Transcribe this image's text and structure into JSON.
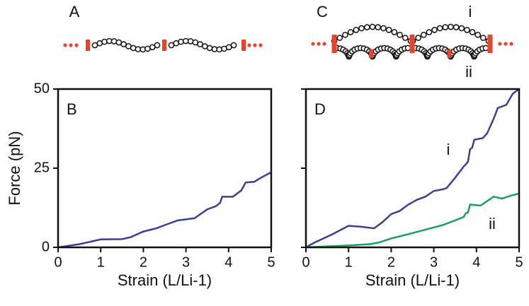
{
  "diagrams": [
    {
      "label": "A"
    },
    {
      "label": "C",
      "top_label": "i",
      "bottom_label": "ii"
    }
  ],
  "chart_data": [
    {
      "type": "line",
      "panel_label": "B",
      "y_label": "Force (pN)",
      "x_label": "Strain (L/Li-1)",
      "xlim": [
        0,
        5
      ],
      "ylim": [
        0,
        50
      ],
      "xticks": [
        0,
        1,
        2,
        3,
        4,
        5
      ],
      "yticks": [
        0,
        25,
        50
      ],
      "x": [
        0,
        0.5,
        1,
        1.5,
        1.7,
        2,
        2.3,
        2.5,
        2.8,
        3.2,
        3.5,
        3.7,
        3.8,
        3.85,
        4.1,
        4.3,
        4.4,
        4.6,
        4.8,
        5
      ],
      "series": [
        {
          "color": "#3a3f98",
          "values": [
            0,
            1,
            2.5,
            2.6,
            3.2,
            5,
            6,
            7,
            8.5,
            9.2,
            12,
            13,
            14,
            16,
            16,
            18,
            20.5,
            20.7,
            22.3,
            23.7
          ]
        }
      ]
    },
    {
      "type": "line",
      "panel_label": "D",
      "x_label": "Strain (L/Li-1)",
      "xlim": [
        0,
        5
      ],
      "ylim": [
        0,
        50
      ],
      "xticks": [
        0,
        1,
        2,
        3,
        4,
        5
      ],
      "series": [
        {
          "name": "i",
          "color": "#3a3f98",
          "x": [
            0,
            0.2,
            0.6,
            1,
            1.3,
            1.6,
            1.8,
            2,
            2.2,
            2.4,
            2.6,
            2.8,
            3,
            3.2,
            3.3,
            3.5,
            3.7,
            3.8,
            3.85,
            3.9,
            3.95,
            4.15,
            4.25,
            4.4,
            4.5,
            4.7,
            4.85,
            5
          ],
          "values": [
            0,
            1.5,
            4,
            6.8,
            6.5,
            6,
            8,
            10.5,
            11.5,
            13.5,
            15,
            16,
            17.8,
            18.3,
            18.7,
            22,
            25.5,
            27,
            31,
            31.5,
            34,
            34.5,
            36,
            40.5,
            44,
            45,
            48.5,
            50
          ]
        },
        {
          "name": "ii",
          "color": "#1aa05a",
          "x": [
            0,
            0.5,
            1,
            1.5,
            1.7,
            2,
            2.5,
            3,
            3.2,
            3.5,
            3.7,
            3.75,
            3.8,
            3.85,
            4.1,
            4.4,
            4.6,
            4.8,
            5
          ],
          "values": [
            0,
            0.3,
            0.6,
            1,
            1.5,
            2.8,
            4.5,
            6.3,
            7,
            8.5,
            9.6,
            10.8,
            11,
            13.5,
            13.2,
            16,
            15.4,
            16.3,
            17
          ]
        }
      ]
    }
  ]
}
